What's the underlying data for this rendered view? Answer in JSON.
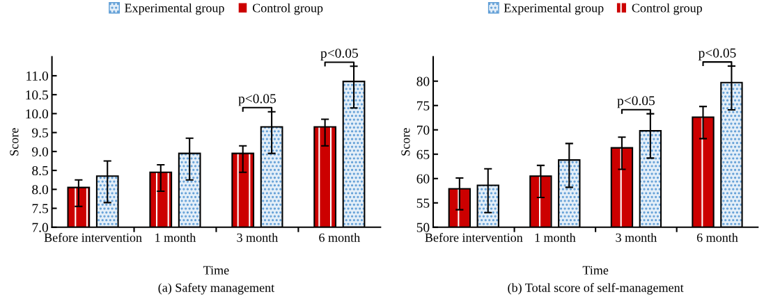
{
  "chart_data": [
    {
      "type": "bar",
      "categories": [
        "Before intervention",
        "1 month",
        "3 month",
        "6 month"
      ],
      "xlabel": "Time",
      "ylabel": "Score",
      "ylim": [
        7.0,
        11.5
      ],
      "yticks": [
        {
          "value": 7,
          "label": "7.0"
        },
        7.5,
        {
          "value": 8,
          "label": "8.0"
        },
        8.5,
        {
          "value": 9,
          "label": "9.0"
        },
        9.5,
        {
          "value": 10,
          "label": "10.0"
        },
        10.5,
        {
          "value": 11,
          "label": "11.0"
        }
      ],
      "legend": "top",
      "grid": false,
      "series": [
        {
          "name": "Control group",
          "color": "#cc0000",
          "values": [
            8.05,
            8.45,
            8.95,
            9.65
          ],
          "errors": [
            [
              7.55,
              8.25
            ],
            [
              7.95,
              8.65
            ],
            [
              8.45,
              9.15
            ],
            [
              9.15,
              9.85
            ]
          ]
        },
        {
          "name": "Experimental group",
          "color": "#5b9bd5",
          "values": [
            8.35,
            8.95,
            9.65,
            10.85
          ],
          "errors": [
            [
              7.65,
              8.75
            ],
            [
              8.25,
              9.35
            ],
            [
              8.95,
              10.05
            ],
            [
              10.15,
              11.25
            ]
          ]
        }
      ],
      "annotations": [
        "p<0.05",
        "p<0.05",
        "(a) Safety management"
      ]
    },
    {
      "type": "bar",
      "categories": [
        "Before intervention",
        "1 month",
        "3 month",
        "6 month"
      ],
      "xlabel": "Time",
      "ylabel": "Score",
      "ylim": [
        50,
        85
      ],
      "yticks": [
        50,
        55,
        60,
        65,
        70,
        75,
        80
      ],
      "legend": "top",
      "grid": false,
      "series": [
        {
          "name": "Control group",
          "color": "#cc0000",
          "values": [
            57.9,
            60.5,
            66.3,
            72.6
          ],
          "errors": [
            [
              53.6,
              60.1
            ],
            [
              56.1,
              62.7
            ],
            [
              61.9,
              68.5
            ],
            [
              68.2,
              74.8
            ]
          ]
        },
        {
          "name": "Experimental group",
          "color": "#5b9bd5",
          "values": [
            58.6,
            63.8,
            69.8,
            79.7
          ],
          "errors": [
            [
              53.0,
              62.0
            ],
            [
              58.2,
              67.2
            ],
            [
              64.2,
              73.3
            ],
            [
              74.1,
              83.1
            ]
          ]
        }
      ],
      "annotations": [
        "p<0.05",
        "p<0.05",
        "(b) Total score of self-management"
      ]
    }
  ]
}
